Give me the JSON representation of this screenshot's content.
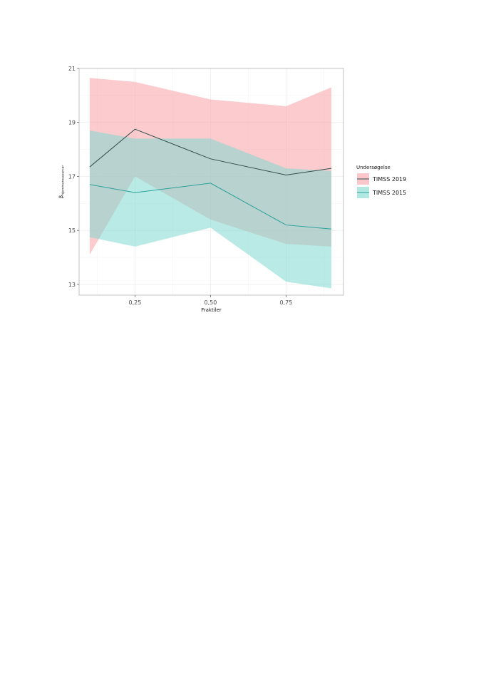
{
  "chart_data": {
    "type": "line",
    "title": "",
    "xlabel": "Fraktiler",
    "ylabel_main": "β",
    "ylabel_sub": "hjemmeressourcer",
    "x": [
      0.1,
      0.25,
      0.5,
      0.75,
      0.9
    ],
    "xlim": [
      0.065,
      0.94
    ],
    "ylim": [
      12.6,
      21.0
    ],
    "xticks": [
      0.25,
      0.5,
      0.75
    ],
    "xtick_labels": [
      "0,25",
      "0,50",
      "0,75"
    ],
    "yticks": [
      13,
      15,
      17,
      19,
      21
    ],
    "ytick_labels": [
      "13",
      "15",
      "17",
      "19",
      "21"
    ],
    "grid": true,
    "legend": {
      "title": "Undersøgelse",
      "position": "right"
    },
    "series": [
      {
        "name": "TIMSS 2019",
        "line_color": "#2f4f4f",
        "fill_color": "#f8a1a6",
        "values": [
          17.35,
          18.75,
          17.65,
          17.05,
          17.3
        ],
        "lower": [
          14.1,
          17.0,
          15.4,
          14.5,
          14.4
        ],
        "upper": [
          20.65,
          20.5,
          19.85,
          19.6,
          20.3
        ]
      },
      {
        "name": "TIMSS 2015",
        "line_color": "#2aa198",
        "fill_color": "#7fd8cf",
        "values": [
          16.7,
          16.4,
          16.75,
          15.2,
          15.05
        ],
        "lower": [
          14.75,
          14.4,
          15.1,
          13.1,
          12.85
        ],
        "upper": [
          18.7,
          18.4,
          18.4,
          17.3,
          17.2
        ]
      }
    ]
  }
}
